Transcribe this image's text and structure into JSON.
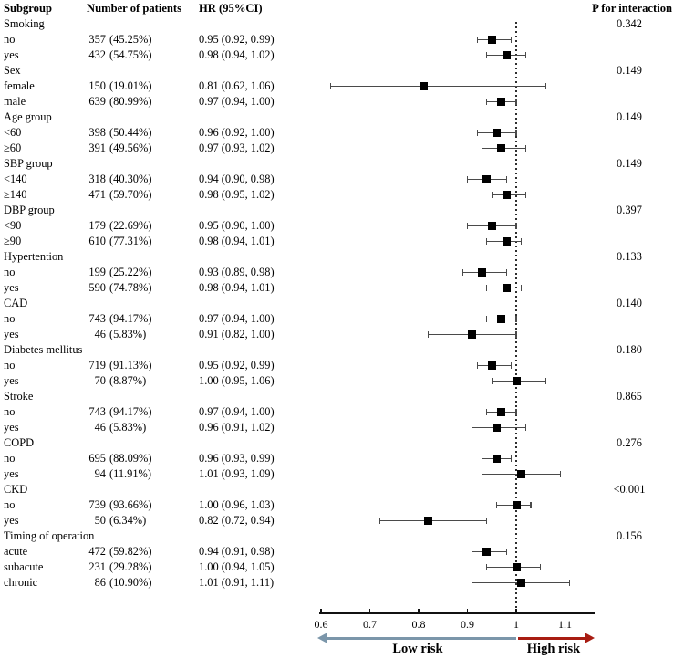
{
  "chart_data": {
    "type": "forest",
    "columns": {
      "subgroup": "Subgroup",
      "patients": "Number of patients",
      "hr": "HR (95%CI)",
      "p_interaction": "P for interaction"
    },
    "groups": [
      {
        "label": "Smoking",
        "p_interaction": "0.342",
        "rows": [
          {
            "label": "no",
            "n": "357",
            "pct": "(45.25%)",
            "hr_label": "0.95 (0.92, 0.99)",
            "hr": 0.95,
            "ci": [
              0.92,
              0.99
            ]
          },
          {
            "label": "yes",
            "n": "432",
            "pct": "(54.75%)",
            "hr_label": "0.98 (0.94, 1.02)",
            "hr": 0.98,
            "ci": [
              0.94,
              1.02
            ]
          }
        ]
      },
      {
        "label": "Sex",
        "p_interaction": "0.149",
        "rows": [
          {
            "label": "female",
            "n": "150",
            "pct": "(19.01%)",
            "hr_label": "0.81 (0.62, 1.06)",
            "hr": 0.81,
            "ci": [
              0.62,
              1.06
            ]
          },
          {
            "label": "male",
            "n": "639",
            "pct": "(80.99%)",
            "hr_label": "0.97 (0.94, 1.00)",
            "hr": 0.97,
            "ci": [
              0.94,
              1.0
            ]
          }
        ]
      },
      {
        "label": "Age group",
        "p_interaction": "0.149",
        "rows": [
          {
            "label": "<60",
            "n": "398",
            "pct": "(50.44%)",
            "hr_label": "0.96 (0.92, 1.00)",
            "hr": 0.96,
            "ci": [
              0.92,
              1.0
            ]
          },
          {
            "label": "≥60",
            "n": "391",
            "pct": "(49.56%)",
            "hr_label": "0.97 (0.93, 1.02)",
            "hr": 0.97,
            "ci": [
              0.93,
              1.02
            ]
          }
        ]
      },
      {
        "label": "SBP group",
        "p_interaction": "0.149",
        "rows": [
          {
            "label": "<140",
            "n": "318",
            "pct": "(40.30%)",
            "hr_label": "0.94 (0.90, 0.98)",
            "hr": 0.94,
            "ci": [
              0.9,
              0.98
            ]
          },
          {
            "label": "≥140",
            "n": "471",
            "pct": "(59.70%)",
            "hr_label": "0.98 (0.95, 1.02)",
            "hr": 0.98,
            "ci": [
              0.95,
              1.02
            ]
          }
        ]
      },
      {
        "label": "DBP group",
        "p_interaction": "0.397",
        "rows": [
          {
            "label": "<90",
            "n": "179",
            "pct": "(22.69%)",
            "hr_label": "0.95 (0.90, 1.00)",
            "hr": 0.95,
            "ci": [
              0.9,
              1.0
            ]
          },
          {
            "label": "≥90",
            "n": "610",
            "pct": "(77.31%)",
            "hr_label": "0.98 (0.94, 1.01)",
            "hr": 0.98,
            "ci": [
              0.94,
              1.01
            ]
          }
        ]
      },
      {
        "label": "Hypertention",
        "p_interaction": "0.133",
        "rows": [
          {
            "label": "no",
            "n": "199",
            "pct": "(25.22%)",
            "hr_label": "0.93 (0.89, 0.98)",
            "hr": 0.93,
            "ci": [
              0.89,
              0.98
            ]
          },
          {
            "label": "yes",
            "n": "590",
            "pct": "(74.78%)",
            "hr_label": "0.98 (0.94, 1.01)",
            "hr": 0.98,
            "ci": [
              0.94,
              1.01
            ]
          }
        ]
      },
      {
        "label": "CAD",
        "p_interaction": "0.140",
        "rows": [
          {
            "label": "no",
            "n": "743",
            "pct": "(94.17%)",
            "hr_label": "0.97 (0.94, 1.00)",
            "hr": 0.97,
            "ci": [
              0.94,
              1.0
            ]
          },
          {
            "label": "yes",
            "n": "46",
            "pct": "(5.83%)",
            "hr_label": "0.91 (0.82, 1.00)",
            "hr": 0.91,
            "ci": [
              0.82,
              1.0
            ]
          }
        ]
      },
      {
        "label": "Diabetes mellitus",
        "p_interaction": "0.180",
        "rows": [
          {
            "label": "no",
            "n": "719",
            "pct": "(91.13%)",
            "hr_label": "0.95 (0.92, 0.99)",
            "hr": 0.95,
            "ci": [
              0.92,
              0.99
            ]
          },
          {
            "label": "yes",
            "n": "70",
            "pct": "(8.87%)",
            "hr_label": "1.00 (0.95, 1.06)",
            "hr": 1.0,
            "ci": [
              0.95,
              1.06
            ]
          }
        ]
      },
      {
        "label": "Stroke",
        "p_interaction": "0.865",
        "rows": [
          {
            "label": "no",
            "n": "743",
            "pct": "(94.17%)",
            "hr_label": "0.97 (0.94, 1.00)",
            "hr": 0.97,
            "ci": [
              0.94,
              1.0
            ]
          },
          {
            "label": "yes",
            "n": "46",
            "pct": "(5.83%)",
            "hr_label": "0.96 (0.91, 1.02)",
            "hr": 0.96,
            "ci": [
              0.91,
              1.02
            ]
          }
        ]
      },
      {
        "label": "COPD",
        "p_interaction": "0.276",
        "rows": [
          {
            "label": "no",
            "n": "695",
            "pct": "(88.09%)",
            "hr_label": "0.96 (0.93, 0.99)",
            "hr": 0.96,
            "ci": [
              0.93,
              0.99
            ]
          },
          {
            "label": "yes",
            "n": "94",
            "pct": "(11.91%)",
            "hr_label": "1.01 (0.93, 1.09)",
            "hr": 1.01,
            "ci": [
              0.93,
              1.09
            ]
          }
        ]
      },
      {
        "label": "CKD",
        "p_interaction": "<0.001",
        "rows": [
          {
            "label": "no",
            "n": "739",
            "pct": "(93.66%)",
            "hr_label": "1.00 (0.96, 1.03)",
            "hr": 1.0,
            "ci": [
              0.96,
              1.03
            ]
          },
          {
            "label": "yes",
            "n": "50",
            "pct": "(6.34%)",
            "hr_label": "0.82 (0.72, 0.94)",
            "hr": 0.82,
            "ci": [
              0.72,
              0.94
            ]
          }
        ]
      },
      {
        "label": "Timing of operation",
        "p_interaction": "0.156",
        "rows": [
          {
            "label": "acute",
            "n": "472",
            "pct": "(59.82%)",
            "hr_label": "0.94 (0.91, 0.98)",
            "hr": 0.94,
            "ci": [
              0.91,
              0.98
            ]
          },
          {
            "label": "subacute",
            "n": "231",
            "pct": "(29.28%)",
            "hr_label": "1.00 (0.94, 1.05)",
            "hr": 1.0,
            "ci": [
              0.94,
              1.05
            ]
          },
          {
            "label": "chronic",
            "n": "86",
            "pct": "(10.90%)",
            "hr_label": "1.01 (0.91, 1.11)",
            "hr": 1.01,
            "ci": [
              0.91,
              1.11
            ]
          }
        ]
      }
    ],
    "axis": {
      "tick_values": [
        0.6,
        0.7,
        0.8,
        0.9,
        1.0,
        1.1
      ],
      "tick_labels": [
        "0.6",
        "0.7",
        "0.8",
        "0.9",
        "1",
        "1.1"
      ],
      "reference_line": 1.0,
      "xlim": [
        0.6,
        1.16
      ],
      "grid": false
    },
    "arrow_labels": {
      "low": "Low risk",
      "high": "High risk"
    },
    "colors": {
      "low_arrow": "#7b96aa",
      "high_arrow": "#a81c12",
      "marker": "#000000",
      "whisker": "#4a4a4a"
    }
  }
}
